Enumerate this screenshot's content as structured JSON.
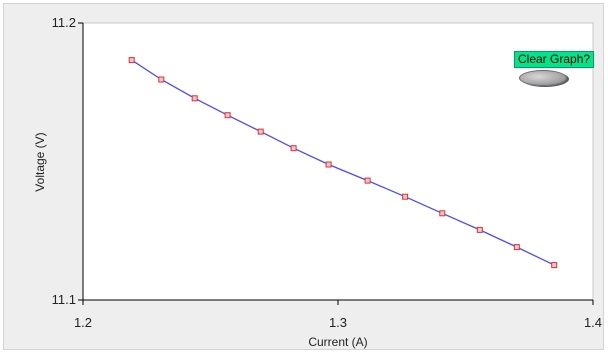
{
  "clear_graph": {
    "label": "Clear Graph?"
  },
  "chart_data": {
    "type": "line",
    "title": "",
    "xlabel": "Current (A)",
    "ylabel": "Voltage (V)",
    "xlim": [
      1.2,
      1.4
    ],
    "ylim": [
      11.1,
      11.2
    ],
    "x_ticks": [
      "1.2",
      "1.3",
      "1.4"
    ],
    "y_ticks": [
      "11.1",
      "11.2"
    ],
    "grid": false,
    "series": [
      {
        "line_color": "#4a4aff",
        "marker_color": "#e03030",
        "x": [
          1.2191,
          1.2307,
          1.2438,
          1.2567,
          1.2697,
          1.2826,
          1.2963,
          1.3116,
          1.3263,
          1.3409,
          1.3556,
          1.3701,
          1.3848
        ],
        "y": [
          11.1866,
          11.1796,
          11.1728,
          11.1667,
          11.1608,
          11.1548,
          11.1489,
          11.1431,
          11.1373,
          11.1313,
          11.1253,
          11.1191,
          11.1126
        ]
      }
    ]
  }
}
